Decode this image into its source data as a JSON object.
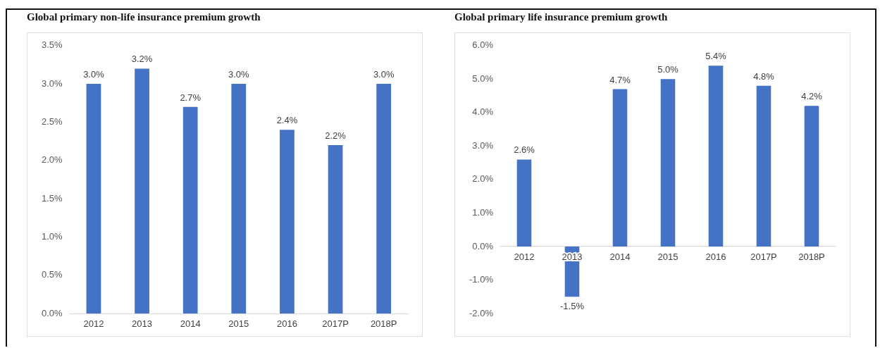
{
  "chart_data": [
    {
      "type": "bar",
      "title": "Global primary non-life insurance premium growth",
      "categories": [
        "2012",
        "2013",
        "2014",
        "2015",
        "2016",
        "2017P",
        "2018P"
      ],
      "values": [
        3.0,
        3.2,
        2.7,
        3.0,
        2.4,
        2.2,
        3.0
      ],
      "value_labels": [
        "3.0%",
        "3.2%",
        "2.7%",
        "3.0%",
        "2.4%",
        "2.2%",
        "3.0%"
      ],
      "color": "#4472c4",
      "ylim": [
        0,
        3.5
      ],
      "yticks": [
        {
          "value": 0,
          "label": "0.0%"
        },
        {
          "value": 0.5,
          "label": "0.5%"
        },
        {
          "value": 1,
          "label": "1.0%"
        },
        {
          "value": 1.5,
          "label": "1.5%"
        },
        {
          "value": 2,
          "label": "2.0%"
        },
        {
          "value": 2.5,
          "label": "2.5%"
        },
        {
          "value": 3,
          "label": "3.0%"
        },
        {
          "value": 3.5,
          "label": "3.5%"
        }
      ]
    },
    {
      "type": "bar",
      "title": "Global primary life insurance premium growth",
      "categories": [
        "2012",
        "2013",
        "2014",
        "2015",
        "2016",
        "2017P",
        "2018P"
      ],
      "values": [
        2.6,
        -1.5,
        4.7,
        5.0,
        5.4,
        4.8,
        4.2
      ],
      "value_labels": [
        "2.6%",
        "-1.5%",
        "4.7%",
        "5.0%",
        "5.4%",
        "4.8%",
        "4.2%"
      ],
      "color": "#4472c4",
      "ylim": [
        -2,
        6
      ],
      "yticks": [
        {
          "value": -2,
          "label": "-2.0%"
        },
        {
          "value": -1,
          "label": "-1.0%"
        },
        {
          "value": 0,
          "label": "0.0%"
        },
        {
          "value": 1,
          "label": "1.0%"
        },
        {
          "value": 2,
          "label": "2.0%"
        },
        {
          "value": 3,
          "label": "3.0%"
        },
        {
          "value": 4,
          "label": "4.0%"
        },
        {
          "value": 5,
          "label": "5.0%"
        },
        {
          "value": 6,
          "label": "6.0%"
        }
      ]
    }
  ]
}
